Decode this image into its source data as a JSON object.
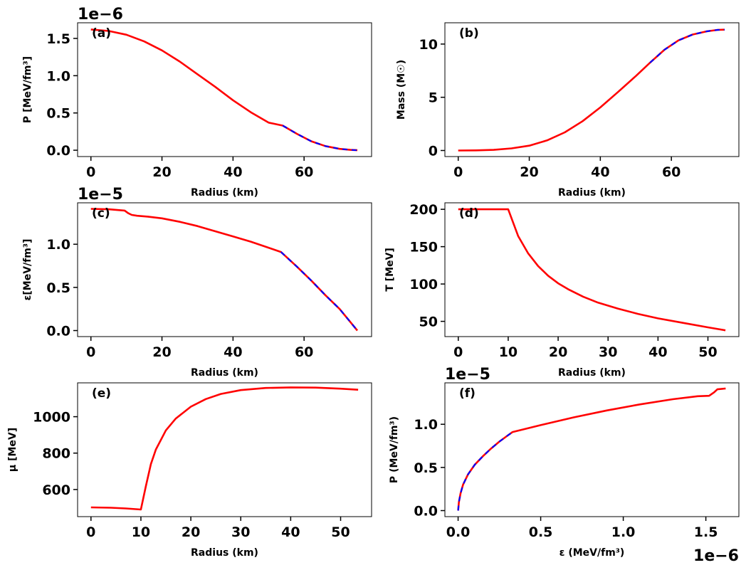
{
  "colors": {
    "main": "#ff0000",
    "overlay": "#0000ff"
  },
  "chart_data": [
    {
      "id": "a",
      "type": "line",
      "tag": "(a)",
      "xlabel": "Radius (km)",
      "ylabel": "P [MeV/fm³]",
      "offset": "1e−6",
      "xlim": [
        -3.75,
        79
      ],
      "ylim": [
        -0.085,
        1.71
      ],
      "xticks": [
        0,
        20,
        40,
        60
      ],
      "xtick_labels": [
        "0",
        "20",
        "40",
        "60"
      ],
      "yticks": [
        0.0,
        0.5,
        1.0,
        1.5
      ],
      "ytick_labels": [
        "0.0",
        "0.5",
        "1.0",
        "1.5"
      ],
      "series": [
        {
          "name": "red",
          "color": "main",
          "width": 2.6,
          "x": [
            0,
            5,
            10,
            15,
            20,
            25,
            30,
            35,
            40,
            45,
            50,
            54,
            58,
            62,
            66,
            70,
            73,
            75
          ],
          "y": [
            1.62,
            1.6,
            1.55,
            1.46,
            1.34,
            1.19,
            1.02,
            0.85,
            0.67,
            0.51,
            0.37,
            0.33,
            0.22,
            0.12,
            0.055,
            0.018,
            0.005,
            0.0
          ]
        },
        {
          "name": "blue",
          "color": "overlay",
          "width": 2.2,
          "dash": "7 6",
          "x": [
            54,
            58,
            62,
            66,
            70,
            73,
            75
          ],
          "y": [
            0.33,
            0.22,
            0.12,
            0.055,
            0.018,
            0.005,
            0.0
          ]
        }
      ]
    },
    {
      "id": "b",
      "type": "line",
      "tag": "(b)",
      "xlabel": "Radius (km)",
      "ylabel": "Mass (M☉)",
      "offset": "",
      "xlim": [
        -3.75,
        79
      ],
      "ylim": [
        -0.57,
        12.0
      ],
      "xticks": [
        0,
        20,
        40,
        60
      ],
      "xtick_labels": [
        "0",
        "20",
        "40",
        "60"
      ],
      "yticks": [
        0,
        5,
        10
      ],
      "ytick_labels": [
        "0",
        "5",
        "10"
      ],
      "series": [
        {
          "name": "red",
          "color": "main",
          "width": 2.6,
          "x": [
            0,
            5,
            10,
            15,
            20,
            25,
            30,
            35,
            40,
            45,
            50,
            54,
            58,
            62,
            66,
            70,
            73,
            75
          ],
          "y": [
            0,
            0.01,
            0.06,
            0.2,
            0.45,
            0.95,
            1.7,
            2.75,
            4.05,
            5.5,
            7.0,
            8.25,
            9.45,
            10.35,
            10.9,
            11.2,
            11.33,
            11.35
          ]
        },
        {
          "name": "blue",
          "color": "overlay",
          "width": 2.2,
          "dash": "7 6",
          "x": [
            54,
            58,
            62,
            66,
            70,
            73,
            75
          ],
          "y": [
            8.25,
            9.45,
            10.35,
            10.9,
            11.2,
            11.33,
            11.35
          ]
        }
      ]
    },
    {
      "id": "c",
      "type": "line",
      "tag": "(c)",
      "xlabel": "Radius (km)",
      "ylabel": "ε[MeV/fm³]",
      "offset": "1e−5",
      "xlim": [
        -3.75,
        79
      ],
      "ylim": [
        -0.07,
        1.48
      ],
      "xticks": [
        0,
        20,
        40,
        60
      ],
      "xtick_labels": [
        "0",
        "20",
        "40",
        "60"
      ],
      "yticks": [
        0.0,
        0.5,
        1.0
      ],
      "ytick_labels": [
        "0.0",
        "0.5",
        "1.0"
      ],
      "series": [
        {
          "name": "red",
          "color": "main",
          "width": 2.6,
          "x": [
            0,
            5,
            9.5,
            10.5,
            11.5,
            13,
            16,
            20,
            25,
            30,
            35,
            40,
            45,
            50,
            53.5,
            58,
            62,
            66,
            70,
            73,
            75
          ],
          "y": [
            1.41,
            1.405,
            1.39,
            1.36,
            1.34,
            1.33,
            1.32,
            1.3,
            1.26,
            1.21,
            1.15,
            1.09,
            1.03,
            0.96,
            0.91,
            0.74,
            0.58,
            0.41,
            0.25,
            0.1,
            0.0
          ]
        },
        {
          "name": "blue",
          "color": "overlay",
          "width": 2.2,
          "dash": "7 6",
          "x": [
            53.5,
            58,
            62,
            66,
            70,
            73,
            75
          ],
          "y": [
            0.91,
            0.74,
            0.58,
            0.41,
            0.25,
            0.1,
            0.0
          ]
        }
      ]
    },
    {
      "id": "d",
      "type": "line",
      "tag": "(d)",
      "xlabel": "Radius (km)",
      "ylabel": "T [MeV]",
      "offset": "",
      "xlim": [
        -2.68,
        56.2
      ],
      "ylim": [
        29.6,
        208.7
      ],
      "xticks": [
        0,
        10,
        20,
        30,
        40,
        50
      ],
      "xtick_labels": [
        "0",
        "10",
        "20",
        "30",
        "40",
        "50"
      ],
      "yticks": [
        50,
        100,
        150,
        200
      ],
      "ytick_labels": [
        "50",
        "100",
        "150",
        "200"
      ],
      "series": [
        {
          "name": "red",
          "color": "main",
          "width": 2.6,
          "x": [
            0,
            5,
            10,
            12,
            14,
            16,
            18,
            20,
            22,
            25,
            28,
            32,
            36,
            40,
            45,
            50,
            53.5
          ],
          "y": [
            200,
            200,
            200,
            164,
            141,
            124,
            111,
            101,
            93,
            83,
            75,
            67,
            60,
            54,
            48,
            42,
            38
          ]
        }
      ]
    },
    {
      "id": "e",
      "type": "line",
      "tag": "(e)",
      "xlabel": "Radius (km)",
      "ylabel": "μ [MeV]",
      "offset": "",
      "xlim": [
        -2.68,
        56.2
      ],
      "ylim": [
        451,
        1186
      ],
      "xticks": [
        0,
        10,
        20,
        30,
        40,
        50
      ],
      "xtick_labels": [
        "0",
        "10",
        "20",
        "30",
        "40",
        "50"
      ],
      "yticks": [
        600,
        800,
        1000
      ],
      "ytick_labels": [
        "600",
        "800",
        "1000"
      ],
      "series": [
        {
          "name": "red",
          "color": "main",
          "width": 2.6,
          "x": [
            0,
            4,
            7,
            10,
            11,
            12,
            13,
            15,
            17,
            20,
            23,
            26,
            30,
            35,
            40,
            45,
            50,
            53.5
          ],
          "y": [
            502,
            500,
            496,
            490,
            620,
            740,
            820,
            925,
            990,
            1055,
            1097,
            1125,
            1146,
            1158,
            1161,
            1160,
            1154,
            1148
          ]
        }
      ]
    },
    {
      "id": "f",
      "type": "line",
      "tag": "(f)",
      "xlabel": "ε (MeV/fm³)",
      "ylabel": "P (MeV/fm³)",
      "offset": "1e−6",
      "offset_y": "1e−5",
      "xlim": [
        -0.08,
        1.7
      ],
      "ylim": [
        -0.07,
        1.48
      ],
      "xticks": [
        0.0,
        0.5,
        1.0,
        1.5
      ],
      "xtick_labels": [
        "0.0",
        "0.5",
        "1.0",
        "1.5"
      ],
      "yticks": [
        0.0,
        0.5,
        1.0
      ],
      "ytick_labels": [
        "0.0",
        "0.5",
        "1.0"
      ],
      "series": [
        {
          "name": "red",
          "color": "main",
          "width": 2.6,
          "x": [
            0,
            0.005,
            0.015,
            0.03,
            0.06,
            0.1,
            0.15,
            0.2,
            0.25,
            0.3,
            0.33,
            0.5,
            0.7,
            0.9,
            1.1,
            1.3,
            1.45,
            1.52,
            1.55,
            1.57,
            1.62
          ],
          "y": [
            0,
            0.1,
            0.2,
            0.3,
            0.42,
            0.53,
            0.63,
            0.72,
            0.8,
            0.87,
            0.91,
            0.99,
            1.08,
            1.16,
            1.23,
            1.29,
            1.325,
            1.33,
            1.37,
            1.405,
            1.415
          ]
        },
        {
          "name": "blue",
          "color": "overlay",
          "width": 2.2,
          "dash": "7 6",
          "x": [
            0,
            0.005,
            0.015,
            0.03,
            0.06,
            0.1,
            0.15,
            0.2,
            0.25,
            0.3,
            0.33
          ],
          "y": [
            0,
            0.1,
            0.2,
            0.3,
            0.42,
            0.53,
            0.63,
            0.72,
            0.8,
            0.87,
            0.91
          ]
        }
      ]
    }
  ]
}
